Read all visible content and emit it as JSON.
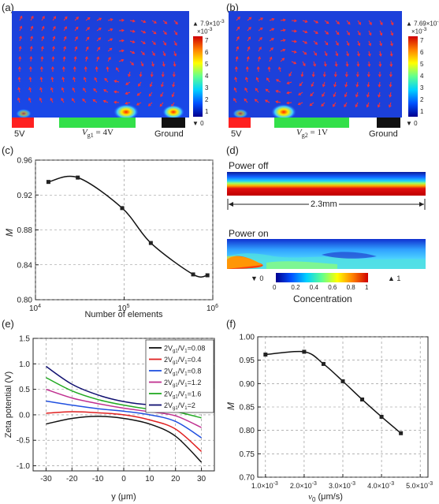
{
  "panels": {
    "a": {
      "label": "(a)",
      "colorbar": {
        "max_label": "7.9×10",
        "max_exp": "-3",
        "exp_label": "×10",
        "exp_sup": "-3",
        "ticks": [
          "7",
          "6",
          "5",
          "4",
          "3",
          "2",
          "1"
        ],
        "min_label": "0"
      },
      "electrodes": {
        "left": "5V",
        "right": "Ground",
        "gate_main": "V",
        "gate_sub": "g1",
        "gate_value": " = 4V"
      },
      "colors": {
        "left_electrode": "#ff2020",
        "gate": "#33e04a",
        "ground": "#111111"
      }
    },
    "b": {
      "label": "(b)",
      "colorbar": {
        "max_label": "7.69×10",
        "max_exp": "-3",
        "exp_label": "×10",
        "exp_sup": "-3",
        "ticks": [
          "7",
          "6",
          "5",
          "4",
          "3",
          "2",
          "1"
        ],
        "min_label": "0"
      },
      "electrodes": {
        "left": "5V",
        "right": "Ground",
        "gate_main": "V",
        "gate_sub": "g2",
        "gate_value": " = 1V"
      }
    },
    "c": {
      "label": "(c)"
    },
    "d": {
      "label": "(d)",
      "power_off": "Power off",
      "power_on": "Power on",
      "length": "2.3mm",
      "colorbar": {
        "min_label": "0",
        "max_label": "1",
        "ticks": [
          "0",
          "0.2",
          "0.4",
          "0.6",
          "0.8",
          "1"
        ],
        "title": "Concentration"
      }
    },
    "e": {
      "label": "(e)"
    },
    "f": {
      "label": "(f)"
    }
  },
  "chart_data": [
    {
      "id": "c",
      "type": "line",
      "xlabel": "Number of elements",
      "ylabel": "M",
      "xscale": "log",
      "xlim": [
        10000,
        1000000
      ],
      "ylim": [
        0.8,
        0.96
      ],
      "xticks": [
        10000,
        100000,
        1000000
      ],
      "xtick_labels": [
        [
          "10",
          "4"
        ],
        [
          "10",
          "5"
        ],
        [
          "10",
          "6"
        ]
      ],
      "yticks": [
        0.8,
        0.84,
        0.88,
        0.92,
        0.96
      ],
      "ytick_labels": [
        "0.80",
        "0.84",
        "0.88",
        "0.92",
        "0.96"
      ],
      "grid": true,
      "series": [
        {
          "x": [
            14000,
            30000,
            95000,
            200000,
            600000,
            870000
          ],
          "y": [
            0.935,
            0.94,
            0.905,
            0.865,
            0.829,
            0.828
          ]
        }
      ]
    },
    {
      "id": "e",
      "type": "line",
      "xlabel": "y (μm)",
      "ylabel": "Zeta potential (V)",
      "xlim": [
        -35,
        35
      ],
      "ylim": [
        -1.1,
        1.5
      ],
      "xticks": [
        -30,
        -20,
        -10,
        0,
        10,
        20,
        30
      ],
      "xtick_labels": [
        "-30",
        "-20",
        "-10",
        "0",
        "10",
        "20",
        "30"
      ],
      "yticks": [
        -1.0,
        -0.5,
        0.0,
        0.5,
        1.0,
        1.5
      ],
      "ytick_labels": [
        "-1.0",
        "-0.5",
        "0.0",
        "0.5",
        "1.0",
        "1.5"
      ],
      "grid": true,
      "legend_position": "top-right",
      "series": [
        {
          "name": "2V/V=0.08",
          "legend_parts": [
            "2V",
            "g1",
            "/V",
            "1",
            "=0.08"
          ],
          "color": "#111111",
          "x": [
            -30,
            -20,
            -10,
            0,
            10,
            20,
            30
          ],
          "y": [
            -0.18,
            -0.07,
            -0.03,
            -0.07,
            -0.18,
            -0.42,
            -0.93
          ]
        },
        {
          "name": "2V/V=0.4",
          "legend_parts": [
            "2V",
            "g1",
            "/V",
            "1",
            "=0.4"
          ],
          "color": "#e02020",
          "x": [
            -30,
            -20,
            -10,
            0,
            10,
            20,
            30
          ],
          "y": [
            0.03,
            0.06,
            0.04,
            0.0,
            -0.1,
            -0.28,
            -0.72
          ]
        },
        {
          "name": "2V/V=0.8",
          "legend_parts": [
            "2V",
            "g1",
            "/V",
            "1",
            "=0.8"
          ],
          "color": "#2050e0",
          "x": [
            -30,
            -20,
            -10,
            0,
            10,
            20,
            30
          ],
          "y": [
            0.27,
            0.19,
            0.12,
            0.07,
            0.0,
            -0.13,
            -0.45
          ]
        },
        {
          "name": "2V/V=1.2",
          "legend_parts": [
            "2V",
            "g1",
            "/V",
            "1",
            "=1.2"
          ],
          "color": "#c03090",
          "x": [
            -30,
            -20,
            -10,
            0,
            10,
            20,
            30
          ],
          "y": [
            0.5,
            0.33,
            0.22,
            0.13,
            0.06,
            -0.02,
            -0.25
          ]
        },
        {
          "name": "2V/V=1.6",
          "legend_parts": [
            "2V",
            "g1",
            "/V",
            "1",
            "=1.6"
          ],
          "color": "#22aa22",
          "x": [
            -30,
            -20,
            -10,
            0,
            10,
            20,
            30
          ],
          "y": [
            0.73,
            0.47,
            0.3,
            0.19,
            0.11,
            0.06,
            -0.06
          ]
        },
        {
          "name": "2V/V=2",
          "legend_parts": [
            "2V",
            "g1",
            "/V",
            "1",
            "=2"
          ],
          "color": "#101070",
          "x": [
            -30,
            -20,
            -10,
            0,
            10,
            20,
            30
          ],
          "y": [
            0.95,
            0.6,
            0.39,
            0.26,
            0.2,
            0.24,
            0.28
          ]
        }
      ]
    },
    {
      "id": "f",
      "type": "line",
      "xlabel_main": "v",
      "xlabel_sub": "0",
      "xlabel_rest": " (μm/s)",
      "ylabel": "M",
      "xlim": [
        0.0008,
        0.0052
      ],
      "ylim": [
        0.7,
        1.0
      ],
      "xticks": [
        0.001,
        0.002,
        0.003,
        0.004,
        0.005
      ],
      "xtick_labels": [
        [
          "1.0×10",
          "-3"
        ],
        [
          "2.0×10",
          "-3"
        ],
        [
          "3.0×10",
          "-3"
        ],
        [
          "4.0×10",
          "-3"
        ],
        [
          "5.0×10",
          "-3"
        ]
      ],
      "yticks": [
        0.7,
        0.75,
        0.8,
        0.85,
        0.9,
        0.95,
        1.0
      ],
      "ytick_labels": [
        "0.70",
        "0.75",
        "0.80",
        "0.85",
        "0.90",
        "0.95",
        "1.00"
      ],
      "grid": true,
      "series": [
        {
          "x": [
            0.001,
            0.002,
            0.0025,
            0.003,
            0.0035,
            0.004,
            0.0045
          ],
          "y": [
            0.962,
            0.968,
            0.942,
            0.905,
            0.866,
            0.829,
            0.794
          ]
        }
      ]
    }
  ]
}
